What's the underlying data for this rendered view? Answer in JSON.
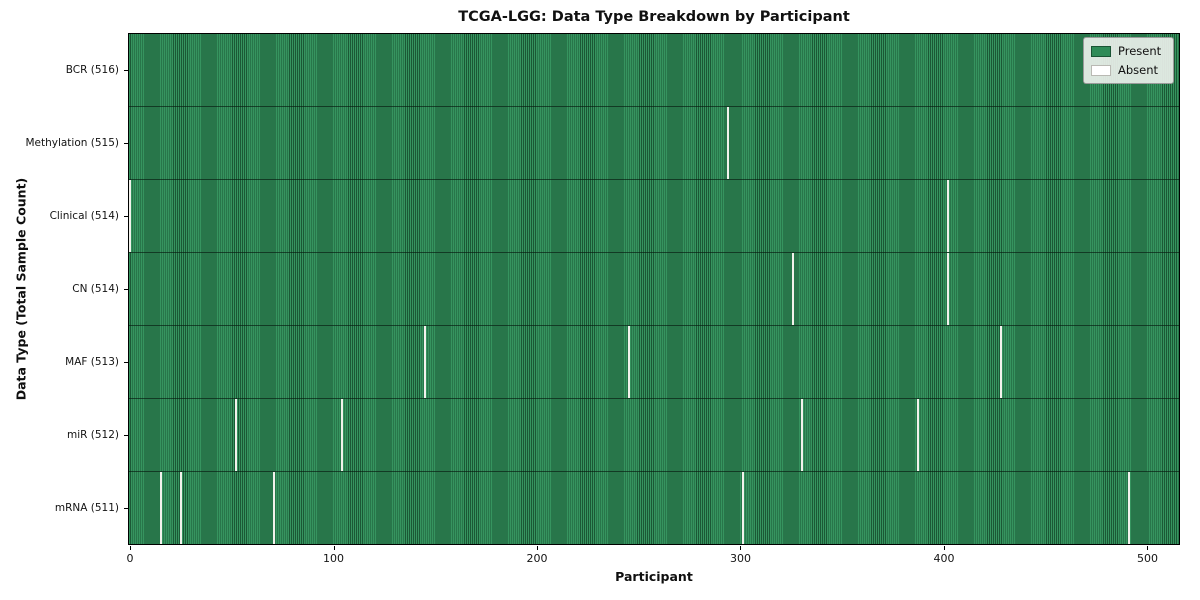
{
  "chart_data": {
    "type": "heatmap",
    "title": "TCGA-LGG: Data Type Breakdown by Participant",
    "xlabel": "Participant",
    "ylabel": "Data Type (Total Sample Count)",
    "x_ticks": [
      0,
      100,
      200,
      300,
      400,
      500
    ],
    "n_participants": 516,
    "x_range": [
      0,
      515
    ],
    "grid": false,
    "legend": {
      "position": "upper right",
      "items": [
        {
          "label": "Present",
          "color": "#2e8b57"
        },
        {
          "label": "Absent",
          "color": "#ffffff"
        }
      ]
    },
    "rows": [
      {
        "label": "BCR (516)",
        "data_type": "BCR",
        "total": 516,
        "absent_participants": []
      },
      {
        "label": "Methylation (515)",
        "data_type": "Methylation",
        "total": 515,
        "absent_participants": [
          294
        ]
      },
      {
        "label": "Clinical (514)",
        "data_type": "Clinical",
        "total": 514,
        "absent_participants": [
          0,
          402
        ]
      },
      {
        "label": "CN (514)",
        "data_type": "CN",
        "total": 514,
        "absent_participants": [
          326,
          402
        ]
      },
      {
        "label": "MAF (513)",
        "data_type": "MAF",
        "total": 513,
        "absent_participants": [
          145,
          245,
          428
        ]
      },
      {
        "label": "miR (512)",
        "data_type": "miR",
        "total": 512,
        "absent_participants": [
          52,
          104,
          330,
          387
        ]
      },
      {
        "label": "mRNA (511)",
        "data_type": "mRNA",
        "total": 511,
        "absent_participants": [
          15,
          25,
          71,
          301,
          491
        ]
      }
    ],
    "colors": {
      "present_fill": "#2e8b57",
      "present_stripe_dark": "#1b5835",
      "absent_gap": "#f2f2ec",
      "row_divider": "#102a1a",
      "plot_border": "#000000",
      "legend_background": "#eaefea",
      "legend_border": "#9a9a9a"
    }
  }
}
